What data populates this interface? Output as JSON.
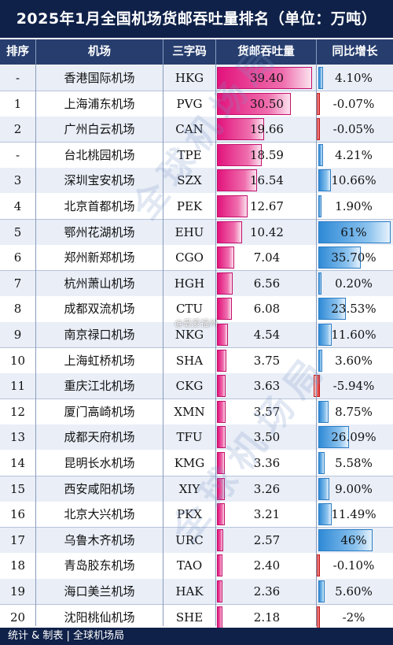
{
  "title": "2025年1月全国机场货邮吞吐量排名（单位：万吨）",
  "headers": {
    "rank": "排序",
    "airport": "机场",
    "code": "三字码",
    "volume": "货邮吞吐量",
    "growth": "同比增长"
  },
  "chart_data": {
    "type": "table",
    "unit": "万吨",
    "columns": [
      "排序",
      "机场",
      "三字码",
      "货邮吞吐量",
      "同比增长"
    ],
    "rows": [
      {
        "rank": "-",
        "airport": "香港国际机场",
        "code": "HKG",
        "volume": "39.40",
        "growth": "4.10%",
        "growth_value": 4.1
      },
      {
        "rank": "1",
        "airport": "上海浦东机场",
        "code": "PVG",
        "volume": "30.50",
        "growth": "-0.07%",
        "growth_value": -0.07
      },
      {
        "rank": "2",
        "airport": "广州白云机场",
        "code": "CAN",
        "volume": "19.66",
        "growth": "-0.05%",
        "growth_value": -0.05
      },
      {
        "rank": "-",
        "airport": "台北桃园机场",
        "code": "TPE",
        "volume": "18.59",
        "growth": "4.21%",
        "growth_value": 4.21
      },
      {
        "rank": "3",
        "airport": "深圳宝安机场",
        "code": "SZX",
        "volume": "16.54",
        "growth": "10.66%",
        "growth_value": 10.66
      },
      {
        "rank": "4",
        "airport": "北京首都机场",
        "code": "PEK",
        "volume": "12.67",
        "growth": "1.90%",
        "growth_value": 1.9
      },
      {
        "rank": "5",
        "airport": "鄂州花湖机场",
        "code": "EHU",
        "volume": "10.42",
        "growth": "61%",
        "growth_value": 61
      },
      {
        "rank": "6",
        "airport": "郑州新郑机场",
        "code": "CGO",
        "volume": "7.04",
        "growth": "35.70%",
        "growth_value": 35.7
      },
      {
        "rank": "7",
        "airport": "杭州萧山机场",
        "code": "HGH",
        "volume": "6.56",
        "growth": "0.20%",
        "growth_value": 0.2
      },
      {
        "rank": "8",
        "airport": "成都双流机场",
        "code": "CTU",
        "volume": "6.08",
        "growth": "23.53%",
        "growth_value": 23.53
      },
      {
        "rank": "9",
        "airport": "南京禄口机场",
        "code": "NKG",
        "volume": "4.54",
        "growth": "11.60%",
        "growth_value": 11.6
      },
      {
        "rank": "10",
        "airport": "上海虹桥机场",
        "code": "SHA",
        "volume": "3.75",
        "growth": "3.60%",
        "growth_value": 3.6
      },
      {
        "rank": "11",
        "airport": "重庆江北机场",
        "code": "CKG",
        "volume": "3.63",
        "growth": "-5.94%",
        "growth_value": -5.94
      },
      {
        "rank": "12",
        "airport": "厦门高崎机场",
        "code": "XMN",
        "volume": "3.57",
        "growth": "8.75%",
        "growth_value": 8.75
      },
      {
        "rank": "13",
        "airport": "成都天府机场",
        "code": "TFU",
        "volume": "3.50",
        "growth": "26.09%",
        "growth_value": 26.09
      },
      {
        "rank": "14",
        "airport": "昆明长水机场",
        "code": "KMG",
        "volume": "3.36",
        "growth": "5.58%",
        "growth_value": 5.58
      },
      {
        "rank": "15",
        "airport": "西安咸阳机场",
        "code": "XIY",
        "volume": "3.26",
        "growth": "9.00%",
        "growth_value": 9.0
      },
      {
        "rank": "16",
        "airport": "北京大兴机场",
        "code": "PKX",
        "volume": "3.21",
        "growth": "11.49%",
        "growth_value": 11.49
      },
      {
        "rank": "17",
        "airport": "乌鲁木齐机场",
        "code": "URC",
        "volume": "2.57",
        "growth": "46%",
        "growth_value": 46
      },
      {
        "rank": "18",
        "airport": "青岛胶东机场",
        "code": "TAO",
        "volume": "2.40",
        "growth": "-0.10%",
        "growth_value": -0.1
      },
      {
        "rank": "19",
        "airport": "海口美兰机场",
        "code": "HAK",
        "volume": "2.36",
        "growth": "5.60%",
        "growth_value": 5.6
      },
      {
        "rank": "20",
        "airport": "沈阳桃仙机场",
        "code": "SHE",
        "volume": "2.18",
        "growth": "-2%",
        "growth_value": -2
      }
    ]
  },
  "colors": {
    "header_bg": "#0f2149",
    "column_header_bg": "#263d6e",
    "volume_bar": "#e2137c",
    "growth_positive_bar": "#2f8ad6",
    "growth_negative_bar": "#e23030"
  },
  "watermark": {
    "text_1": "全球机场局",
    "text_2": "全球机场局",
    "weibo": "@最爱福州"
  },
  "footer": "统计 & 制表 | 全球机场局"
}
